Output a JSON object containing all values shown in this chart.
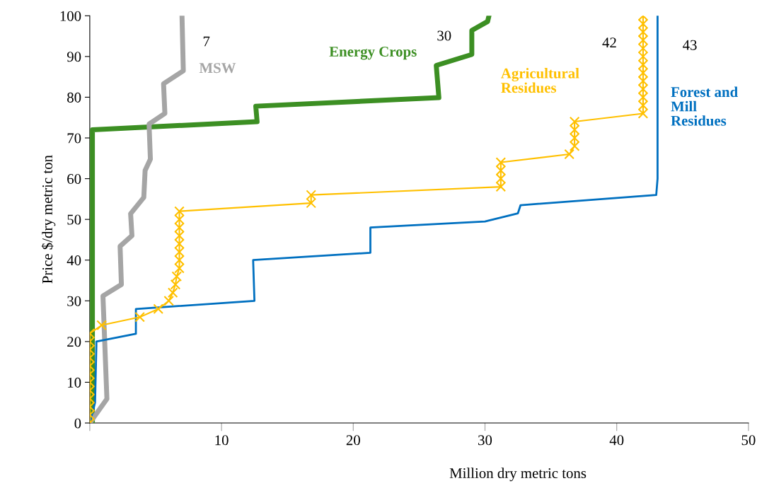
{
  "chart_data": {
    "type": "line",
    "xlabel": "Million dry metric tons",
    "ylabel": "Price $/dry metric ton",
    "xlim": [
      0,
      50
    ],
    "xticks": [
      {
        "value": 0,
        "label": null
      },
      10,
      20,
      30,
      40,
      50
    ],
    "ylim": [
      0,
      100
    ],
    "yticks": [
      0,
      10,
      20,
      30,
      40,
      50,
      60,
      70,
      80,
      90,
      100
    ],
    "grid": false,
    "legend": false,
    "series": [
      {
        "name": "MSW",
        "color": "#a5a5a5",
        "marker": "none",
        "x": [
          0,
          1.3,
          1.0,
          2.4,
          2.3,
          3.2,
          3.1,
          4.1,
          4.2,
          4.6,
          4.5,
          5.7,
          5.6,
          7.1,
          7.0
        ],
        "values": [
          0,
          5.9,
          31.2,
          34,
          43.4,
          46,
          51.4,
          55.4,
          62,
          64.8,
          73.4,
          76,
          83.3,
          86.5,
          100
        ]
      },
      {
        "name": "Energy Crops",
        "color": "#3c8f23",
        "marker": "none",
        "x": [
          0.2,
          0.2,
          12.7,
          12.6,
          26.5,
          26.3,
          29.0,
          29.0,
          30.2,
          30.3
        ],
        "values": [
          0,
          72,
          74,
          77.8,
          79.9,
          87.8,
          90.5,
          96.4,
          98.6,
          100
        ]
      },
      {
        "name": "Agricultural\nResidues",
        "color": "#ffc000",
        "marker": "cross",
        "x": [
          0,
          0,
          0,
          0,
          0,
          0,
          0,
          0,
          0,
          0,
          0,
          0,
          0.9,
          3.8,
          5.2,
          6.0,
          6.3,
          6.5,
          6.6,
          6.8,
          6.8,
          6.8,
          6.8,
          6.8,
          6.8,
          6.8,
          6.8,
          16.8,
          16.8,
          31.2,
          31.2,
          31.2,
          31.2,
          36.4,
          36.8,
          36.8,
          36.8,
          36.8,
          42,
          42,
          42,
          42,
          42,
          42,
          42,
          42,
          42,
          42,
          42,
          42,
          42
        ],
        "values": [
          0,
          2,
          4,
          6,
          8,
          10,
          12,
          14,
          16,
          18,
          20,
          22,
          24,
          26,
          28,
          30,
          32,
          34,
          36,
          38,
          40,
          42,
          44,
          46,
          48,
          50,
          52,
          54,
          56,
          58,
          60,
          62,
          64,
          66,
          68,
          70,
          72,
          74,
          76,
          78,
          80,
          82,
          84,
          86,
          88,
          90,
          92,
          94,
          96,
          98,
          100
        ]
      },
      {
        "name": "Forest and\nMill\nResidues",
        "color": "#0070c0",
        "marker": "none",
        "x": [
          0,
          0.4,
          0.5,
          0.5,
          3.5,
          3.5,
          12.5,
          12.4,
          21.3,
          21.3,
          30,
          32.5,
          32.7,
          43.0,
          43.1,
          43.1
        ],
        "values": [
          0,
          5,
          19,
          20,
          21.9,
          28,
          30,
          40,
          41.8,
          48,
          49.5,
          51.5,
          53.5,
          56,
          60,
          100
        ]
      }
    ],
    "annotations": [
      "7",
      "30",
      "42",
      "43"
    ]
  }
}
